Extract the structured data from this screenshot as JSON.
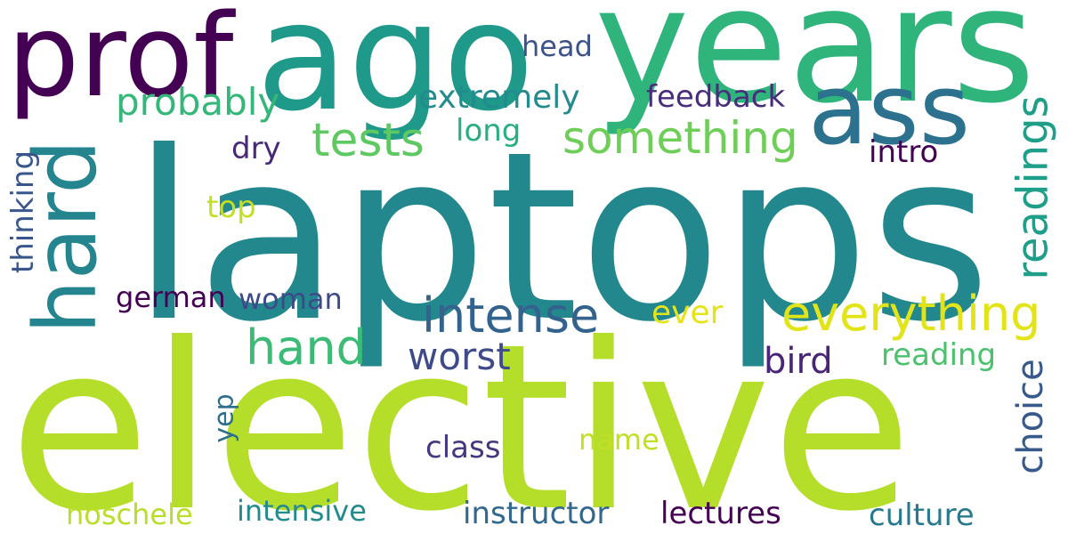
{
  "words": [
    {
      "id": "laptops",
      "text": "laptops",
      "color": "#23888e"
    },
    {
      "id": "elective",
      "text": "elective",
      "color": "#b5de2b"
    },
    {
      "id": "years",
      "text": "years",
      "color": "#2fb47c"
    },
    {
      "id": "ago",
      "text": "ago",
      "color": "#1f9a8a"
    },
    {
      "id": "prof",
      "text": "prof",
      "color": "#440154"
    },
    {
      "id": "hard",
      "text": "hard",
      "color": "#25858e"
    },
    {
      "id": "ass",
      "text": "ass",
      "color": "#2c728e"
    },
    {
      "id": "everything",
      "text": "everything",
      "color": "#e2e418"
    },
    {
      "id": "intense",
      "text": "intense",
      "color": "#33638d"
    },
    {
      "id": "tests",
      "text": "tests",
      "color": "#5ec962"
    },
    {
      "id": "something",
      "text": "something",
      "color": "#6ece58"
    },
    {
      "id": "probably",
      "text": "probably",
      "color": "#35b779"
    },
    {
      "id": "hand",
      "text": "hand",
      "color": "#3bbb75"
    },
    {
      "id": "readings",
      "text": "readings",
      "color": "#1f9e89"
    },
    {
      "id": "extremely",
      "text": "extremely",
      "color": "#228b8d"
    },
    {
      "id": "feedback",
      "text": "feedback",
      "color": "#472d7b"
    },
    {
      "id": "head",
      "text": "head",
      "color": "#3b528b"
    },
    {
      "id": "long",
      "text": "long",
      "color": "#29af7f"
    },
    {
      "id": "dry",
      "text": "dry",
      "color": "#482878"
    },
    {
      "id": "intro",
      "text": "intro",
      "color": "#440154"
    },
    {
      "id": "thinking",
      "text": "thinking",
      "color": "#39568c"
    },
    {
      "id": "top",
      "text": "top",
      "color": "#c2df23"
    },
    {
      "id": "german",
      "text": "german",
      "color": "#440154"
    },
    {
      "id": "woman",
      "text": "woman",
      "color": "#3e4989"
    },
    {
      "id": "ever",
      "text": "ever",
      "color": "#e5e419"
    },
    {
      "id": "worst",
      "text": "worst",
      "color": "#3e4a89"
    },
    {
      "id": "bird",
      "text": "bird",
      "color": "#482576"
    },
    {
      "id": "reading",
      "text": "reading",
      "color": "#4ac16d"
    },
    {
      "id": "choice",
      "text": "choice",
      "color": "#38598c"
    },
    {
      "id": "yep",
      "text": "yep",
      "color": "#2d708e"
    },
    {
      "id": "class",
      "text": "class",
      "color": "#453781"
    },
    {
      "id": "name",
      "text": "name",
      "color": "#c0df25"
    },
    {
      "id": "hoschele",
      "text": "hoschele",
      "color": "#b8de29"
    },
    {
      "id": "intensive",
      "text": "intensive",
      "color": "#238a8d"
    },
    {
      "id": "instructor",
      "text": "instructor",
      "color": "#31688e"
    },
    {
      "id": "lectures",
      "text": "lectures",
      "color": "#440154"
    },
    {
      "id": "culture",
      "text": "culture",
      "color": "#29798e"
    }
  ]
}
